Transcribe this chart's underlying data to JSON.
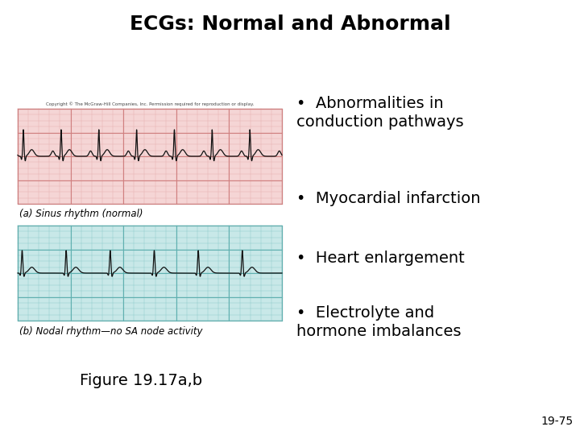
{
  "title": "ECGs: Normal and Abnormal",
  "title_fontsize": 18,
  "title_fontweight": "bold",
  "bg_color": "#ffffff",
  "ecg1_label": "(a) Sinus rhythm (normal)",
  "ecg2_label": "(b) Nodal rhythm—no SA node activity",
  "figure_label": "Figure 19.17a,b",
  "slide_number": "19-75",
  "bullet_points": [
    "Abnormalities in\nconduction pathways",
    "Myocardial infarction",
    "Heart enlargement",
    "Electrolyte and\nhormone imbalances"
  ],
  "ecg1_bg": "#f5d5d5",
  "ecg1_grid_major": "#d08080",
  "ecg1_grid_minor": "#e8b0b0",
  "ecg1_line": "#111111",
  "ecg2_bg": "#c8e8e8",
  "ecg2_grid_major": "#60b0b0",
  "ecg2_grid_minor": "#90cccc",
  "ecg2_line": "#111111",
  "copyright_text": "Copyright © The McGraw-Hill Companies, Inc. Permission required for reproduction or display.",
  "label_fontsize": 8.5,
  "bullet_fontsize": 14,
  "figure_label_fontsize": 14,
  "slide_num_fontsize": 10
}
